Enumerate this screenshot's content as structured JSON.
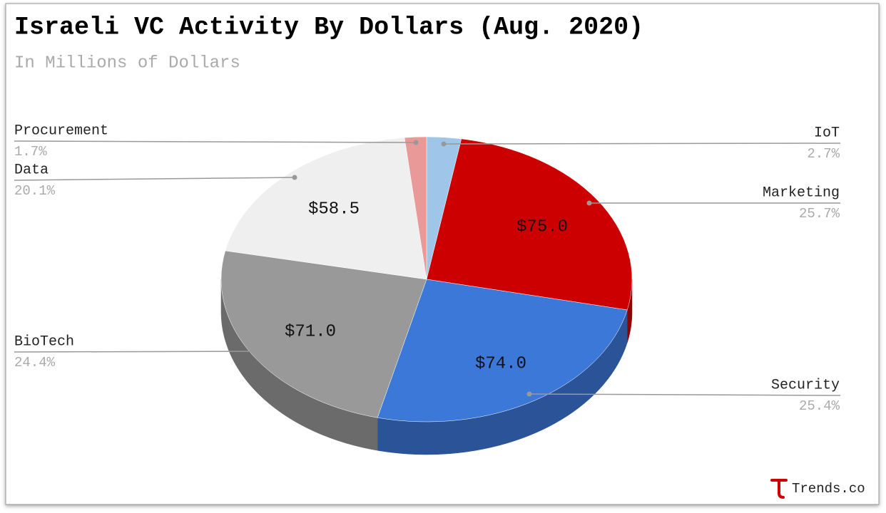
{
  "chart_data": {
    "type": "pie3d",
    "title": "Israeli VC Activity By Dollars (Aug. 2020)",
    "subtitle": "In Millions of Dollars",
    "categories": [
      "IoT",
      "Marketing",
      "Security",
      "BioTech",
      "Data",
      "Procurement"
    ],
    "values": [
      7.9,
      75.0,
      74.0,
      71.0,
      58.5,
      5.0
    ],
    "value_labels": [
      null,
      "$75.0",
      "$74.0",
      "$71.0",
      "$58.5",
      null
    ],
    "percents": [
      2.7,
      25.7,
      25.4,
      24.4,
      20.1,
      1.7
    ],
    "percent_labels": [
      "2.7%",
      "25.7%",
      "25.4%",
      "24.4%",
      "20.1%",
      "1.7%"
    ],
    "colors": [
      "#9fc5e8",
      "#cc0000",
      "#3c78d8",
      "#999999",
      "#efefef",
      "#ea9999"
    ],
    "source": "Trends.co"
  }
}
